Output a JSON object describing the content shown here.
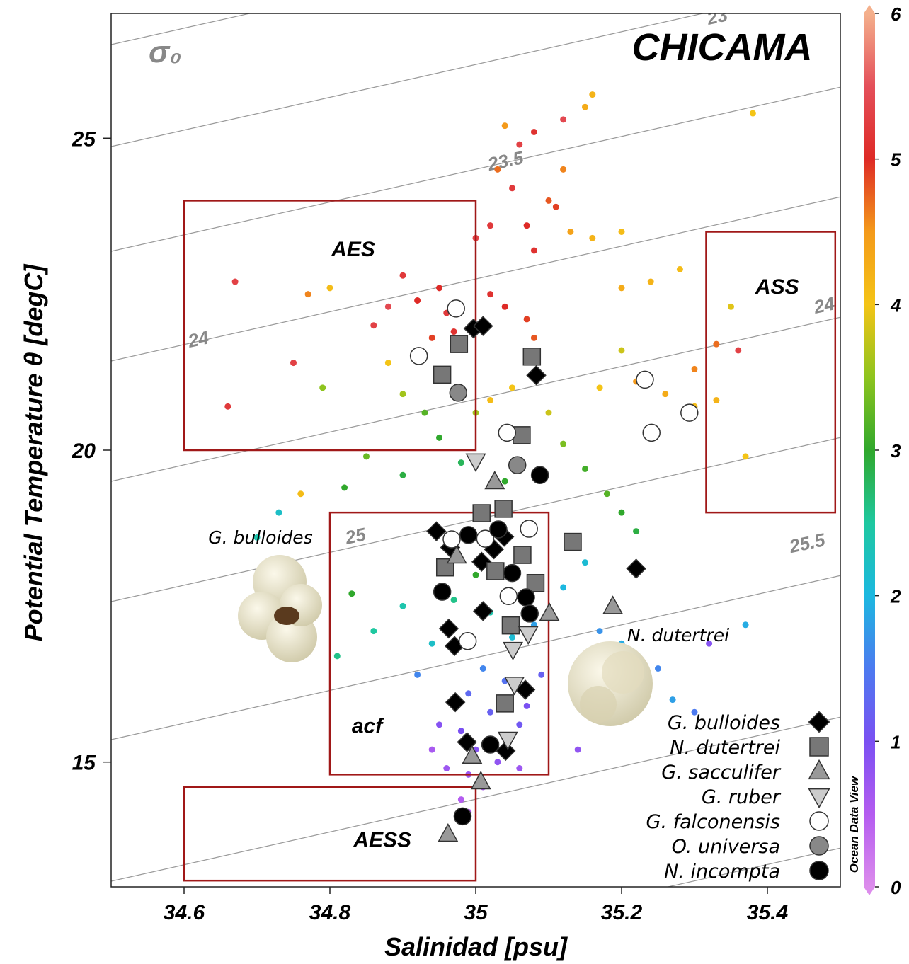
{
  "chart_data": {
    "type": "scatter",
    "title": "CHICAMA",
    "xlabel": "Salinidad [psu]",
    "ylabel": "Potential Temperature θ [degC]",
    "xlim": [
      34.5,
      35.5
    ],
    "ylim": [
      13,
      27
    ],
    "xticks": [
      34.6,
      34.8,
      35,
      35.2,
      35.4
    ],
    "yticks": [
      15,
      20,
      25
    ],
    "isopycnal_title": "σ₀",
    "isopycnals": [
      23,
      23.5,
      24,
      24,
      25,
      25.5
    ],
    "watermark": "Ocean Data View",
    "colorbar": {
      "zlim": [
        0,
        6
      ],
      "ticks": [
        0,
        1,
        2,
        3,
        4,
        5,
        6
      ],
      "colors": [
        "#dc8cec",
        "#b45cf0",
        "#7a50f2",
        "#4c7af0",
        "#1cb8e0",
        "#1ec8a0",
        "#30a82c",
        "#8ec41e",
        "#f4c416",
        "#f49a1a",
        "#de2a26",
        "#e4505a",
        "#f4b08c"
      ]
    },
    "background": {
      "x": [
        35.05,
        35.07,
        35.08,
        35.1,
        35.12,
        35.15,
        35.16,
        35.04,
        35.06,
        35.03,
        35.11,
        35.13,
        35.16,
        35.2,
        35.08,
        35.12,
        35.02,
        35.0,
        34.95,
        34.96,
        34.97,
        34.94,
        34.92,
        34.9,
        34.88,
        34.86,
        35.02,
        35.04,
        35.07,
        35.08,
        34.67,
        34.66,
        34.75,
        34.77,
        34.8,
        35.2,
        35.24,
        35.28,
        35.22,
        35.26,
        35.3,
        35.33,
        35.36,
        35.35,
        35.2,
        35.17,
        35.3,
        35.33,
        35.37,
        35.38,
        34.88,
        34.9,
        34.93,
        34.95,
        35.0,
        35.02,
        35.05,
        35.1,
        35.12,
        35.15,
        35.18,
        35.2,
        35.22,
        35.04,
        34.98,
        34.9,
        34.85,
        34.79,
        34.82,
        34.76,
        34.73,
        34.7,
        35.0,
        34.97,
        35.02,
        35.05,
        34.98,
        35.01,
        35.04,
        34.99,
        35.02,
        35.06,
        34.98,
        35.0,
        35.03,
        34.99,
        35.01,
        34.98,
        34.99,
        34.96,
        35.07,
        35.09,
        35.08,
        35.12,
        35.15,
        35.17,
        35.2,
        35.25,
        35.27,
        35.3,
        35.37,
        35.32,
        35.14,
        34.94,
        34.92,
        34.9,
        34.94,
        34.86,
        34.83,
        34.81,
        35.06,
        34.95
      ],
      "y": [
        24.2,
        23.6,
        23.2,
        24.0,
        24.5,
        25.5,
        25.7,
        25.2,
        24.9,
        24.5,
        23.9,
        23.5,
        23.4,
        23.5,
        25.1,
        25.3,
        23.6,
        23.4,
        22.6,
        22.2,
        21.9,
        21.8,
        22.4,
        22.8,
        22.3,
        22.0,
        22.5,
        22.3,
        22.1,
        21.8,
        22.7,
        20.7,
        21.4,
        22.5,
        22.6,
        22.6,
        22.7,
        22.9,
        21.1,
        20.9,
        21.3,
        21.7,
        21.6,
        22.3,
        21.6,
        21.0,
        20.7,
        20.8,
        19.9,
        25.4,
        21.4,
        20.9,
        20.6,
        20.2,
        20.6,
        20.8,
        21.0,
        20.6,
        20.1,
        19.7,
        19.3,
        19.0,
        18.7,
        19.5,
        19.8,
        19.6,
        19.9,
        21.0,
        19.4,
        19.3,
        19.0,
        18.6,
        18.0,
        17.6,
        17.4,
        17.0,
        16.9,
        16.5,
        16.3,
        16.1,
        15.8,
        15.6,
        15.5,
        15.2,
        15.0,
        14.8,
        14.6,
        14.4,
        14.2,
        14.9,
        15.9,
        16.4,
        17.2,
        17.8,
        18.2,
        17.1,
        16.9,
        16.5,
        16.0,
        15.8,
        17.2,
        16.9,
        15.2,
        15.2,
        16.4,
        17.5,
        16.9,
        17.1,
        17.7,
        16.7,
        14.9,
        15.6
      ],
      "z": [
        5.2,
        5.0,
        5.1,
        4.8,
        4.6,
        4.3,
        4.2,
        4.5,
        5.3,
        4.7,
        4.9,
        4.4,
        4.2,
        4.1,
        5.1,
        5.4,
        5.2,
        5.3,
        5.0,
        5.2,
        5.1,
        4.9,
        5.0,
        5.2,
        5.4,
        5.3,
        5.1,
        5.0,
        4.9,
        4.8,
        5.3,
        5.2,
        5.3,
        4.6,
        4.1,
        4.3,
        4.2,
        4.1,
        4.5,
        4.3,
        4.6,
        4.7,
        5.3,
        3.9,
        3.8,
        4.0,
        4.1,
        4.2,
        4.0,
        4.0,
        4.0,
        3.6,
        3.2,
        3.0,
        3.6,
        4.1,
        4.0,
        3.8,
        3.4,
        3.1,
        3.2,
        3.0,
        2.9,
        3.0,
        2.8,
        2.9,
        3.3,
        3.5,
        3.0,
        4.1,
        2.2,
        2.4,
        3.0,
        2.6,
        2.4,
        2.1,
        2.0,
        1.6,
        1.4,
        1.3,
        1.2,
        1.1,
        1.0,
        0.9,
        0.8,
        0.7,
        0.6,
        0.5,
        0.5,
        0.7,
        1.0,
        1.2,
        1.8,
        2.0,
        2.1,
        1.7,
        1.9,
        1.6,
        1.8,
        1.5,
        1.9,
        0.9,
        0.8,
        0.6,
        1.6,
        2.4,
        2.2,
        2.5,
        3.0,
        2.6,
        0.7,
        0.9
      ]
    },
    "box_color": "#a01818",
    "water_masses": [
      {
        "name": "AES",
        "s": [
          34.6,
          35.0
        ],
        "t": [
          20,
          24
        ]
      },
      {
        "name": "ASS",
        "s": [
          35.316,
          35.493
        ],
        "t": [
          19,
          23.5
        ]
      },
      {
        "name": "acf",
        "s": [
          34.8,
          35.1
        ],
        "t": [
          14.8,
          19
        ]
      },
      {
        "name": "AESS",
        "s": [
          34.6,
          35.0
        ],
        "t": [
          13.1,
          14.6
        ]
      }
    ],
    "annotations": [
      "G. bulloides",
      "N. dutertrei"
    ],
    "series": [
      {
        "name": "G. bulloides",
        "marker": "diamond",
        "color": "#000000",
        "x": [
          34.997,
          35.01,
          35.083,
          34.946,
          34.965,
          35.008,
          35.025,
          35.039,
          35.01,
          34.963,
          34.971,
          34.972,
          35.068,
          34.988,
          35.041,
          35.22
        ],
        "y": [
          21.95,
          21.99,
          21.2,
          18.7,
          18.44,
          18.21,
          18.41,
          18.61,
          17.42,
          17.14,
          16.86,
          15.96,
          16.16,
          15.32,
          15.18,
          18.1
        ]
      },
      {
        "name": "N. dutertrei",
        "marker": "square",
        "color": "#777777",
        "x": [
          34.977,
          34.954,
          35.077,
          35.063,
          35.008,
          35.038,
          35.133,
          35.064,
          34.958,
          35.027,
          35.082,
          35.048,
          35.04
        ],
        "y": [
          21.7,
          21.21,
          21.5,
          20.24,
          18.99,
          19.06,
          18.53,
          18.32,
          18.12,
          18.06,
          17.87,
          17.19,
          15.94
        ]
      },
      {
        "name": "G. sacculifer",
        "marker": "triangle-up",
        "color": "#999999",
        "x": [
          35.026,
          34.974,
          35.101,
          35.188,
          34.995,
          35.007,
          34.962
        ],
        "y": [
          19.49,
          18.3,
          17.38,
          17.49,
          15.09,
          14.68,
          13.84
        ]
      },
      {
        "name": "G. ruber",
        "marker": "triangle-down",
        "color": "#cccccc",
        "x": [
          35.0,
          35.072,
          35.051,
          35.053,
          35.044
        ],
        "y": [
          19.83,
          17.06,
          16.81,
          16.25,
          15.37
        ]
      },
      {
        "name": "G. falconensis",
        "marker": "circle",
        "color": "#ffffff",
        "x": [
          34.973,
          34.922,
          35.043,
          35.073,
          35.013,
          34.967,
          35.045,
          34.989,
          35.232,
          35.293,
          35.241
        ],
        "y": [
          22.27,
          21.51,
          20.28,
          18.74,
          18.58,
          18.57,
          17.66,
          16.94,
          21.13,
          20.6,
          20.28
        ]
      },
      {
        "name": "O. universa",
        "marker": "circle",
        "color": "#888888",
        "x": [
          34.976,
          35.057
        ],
        "y": [
          20.92,
          19.76
        ]
      },
      {
        "name": "N. incompta",
        "marker": "circle",
        "color": "#000000",
        "x": [
          35.088,
          34.99,
          35.031,
          34.954,
          35.05,
          35.069,
          35.074,
          35.02,
          34.982
        ],
        "y": [
          19.6,
          18.64,
          18.73,
          17.73,
          18.03,
          17.64,
          17.38,
          15.28,
          14.13
        ]
      }
    ]
  }
}
